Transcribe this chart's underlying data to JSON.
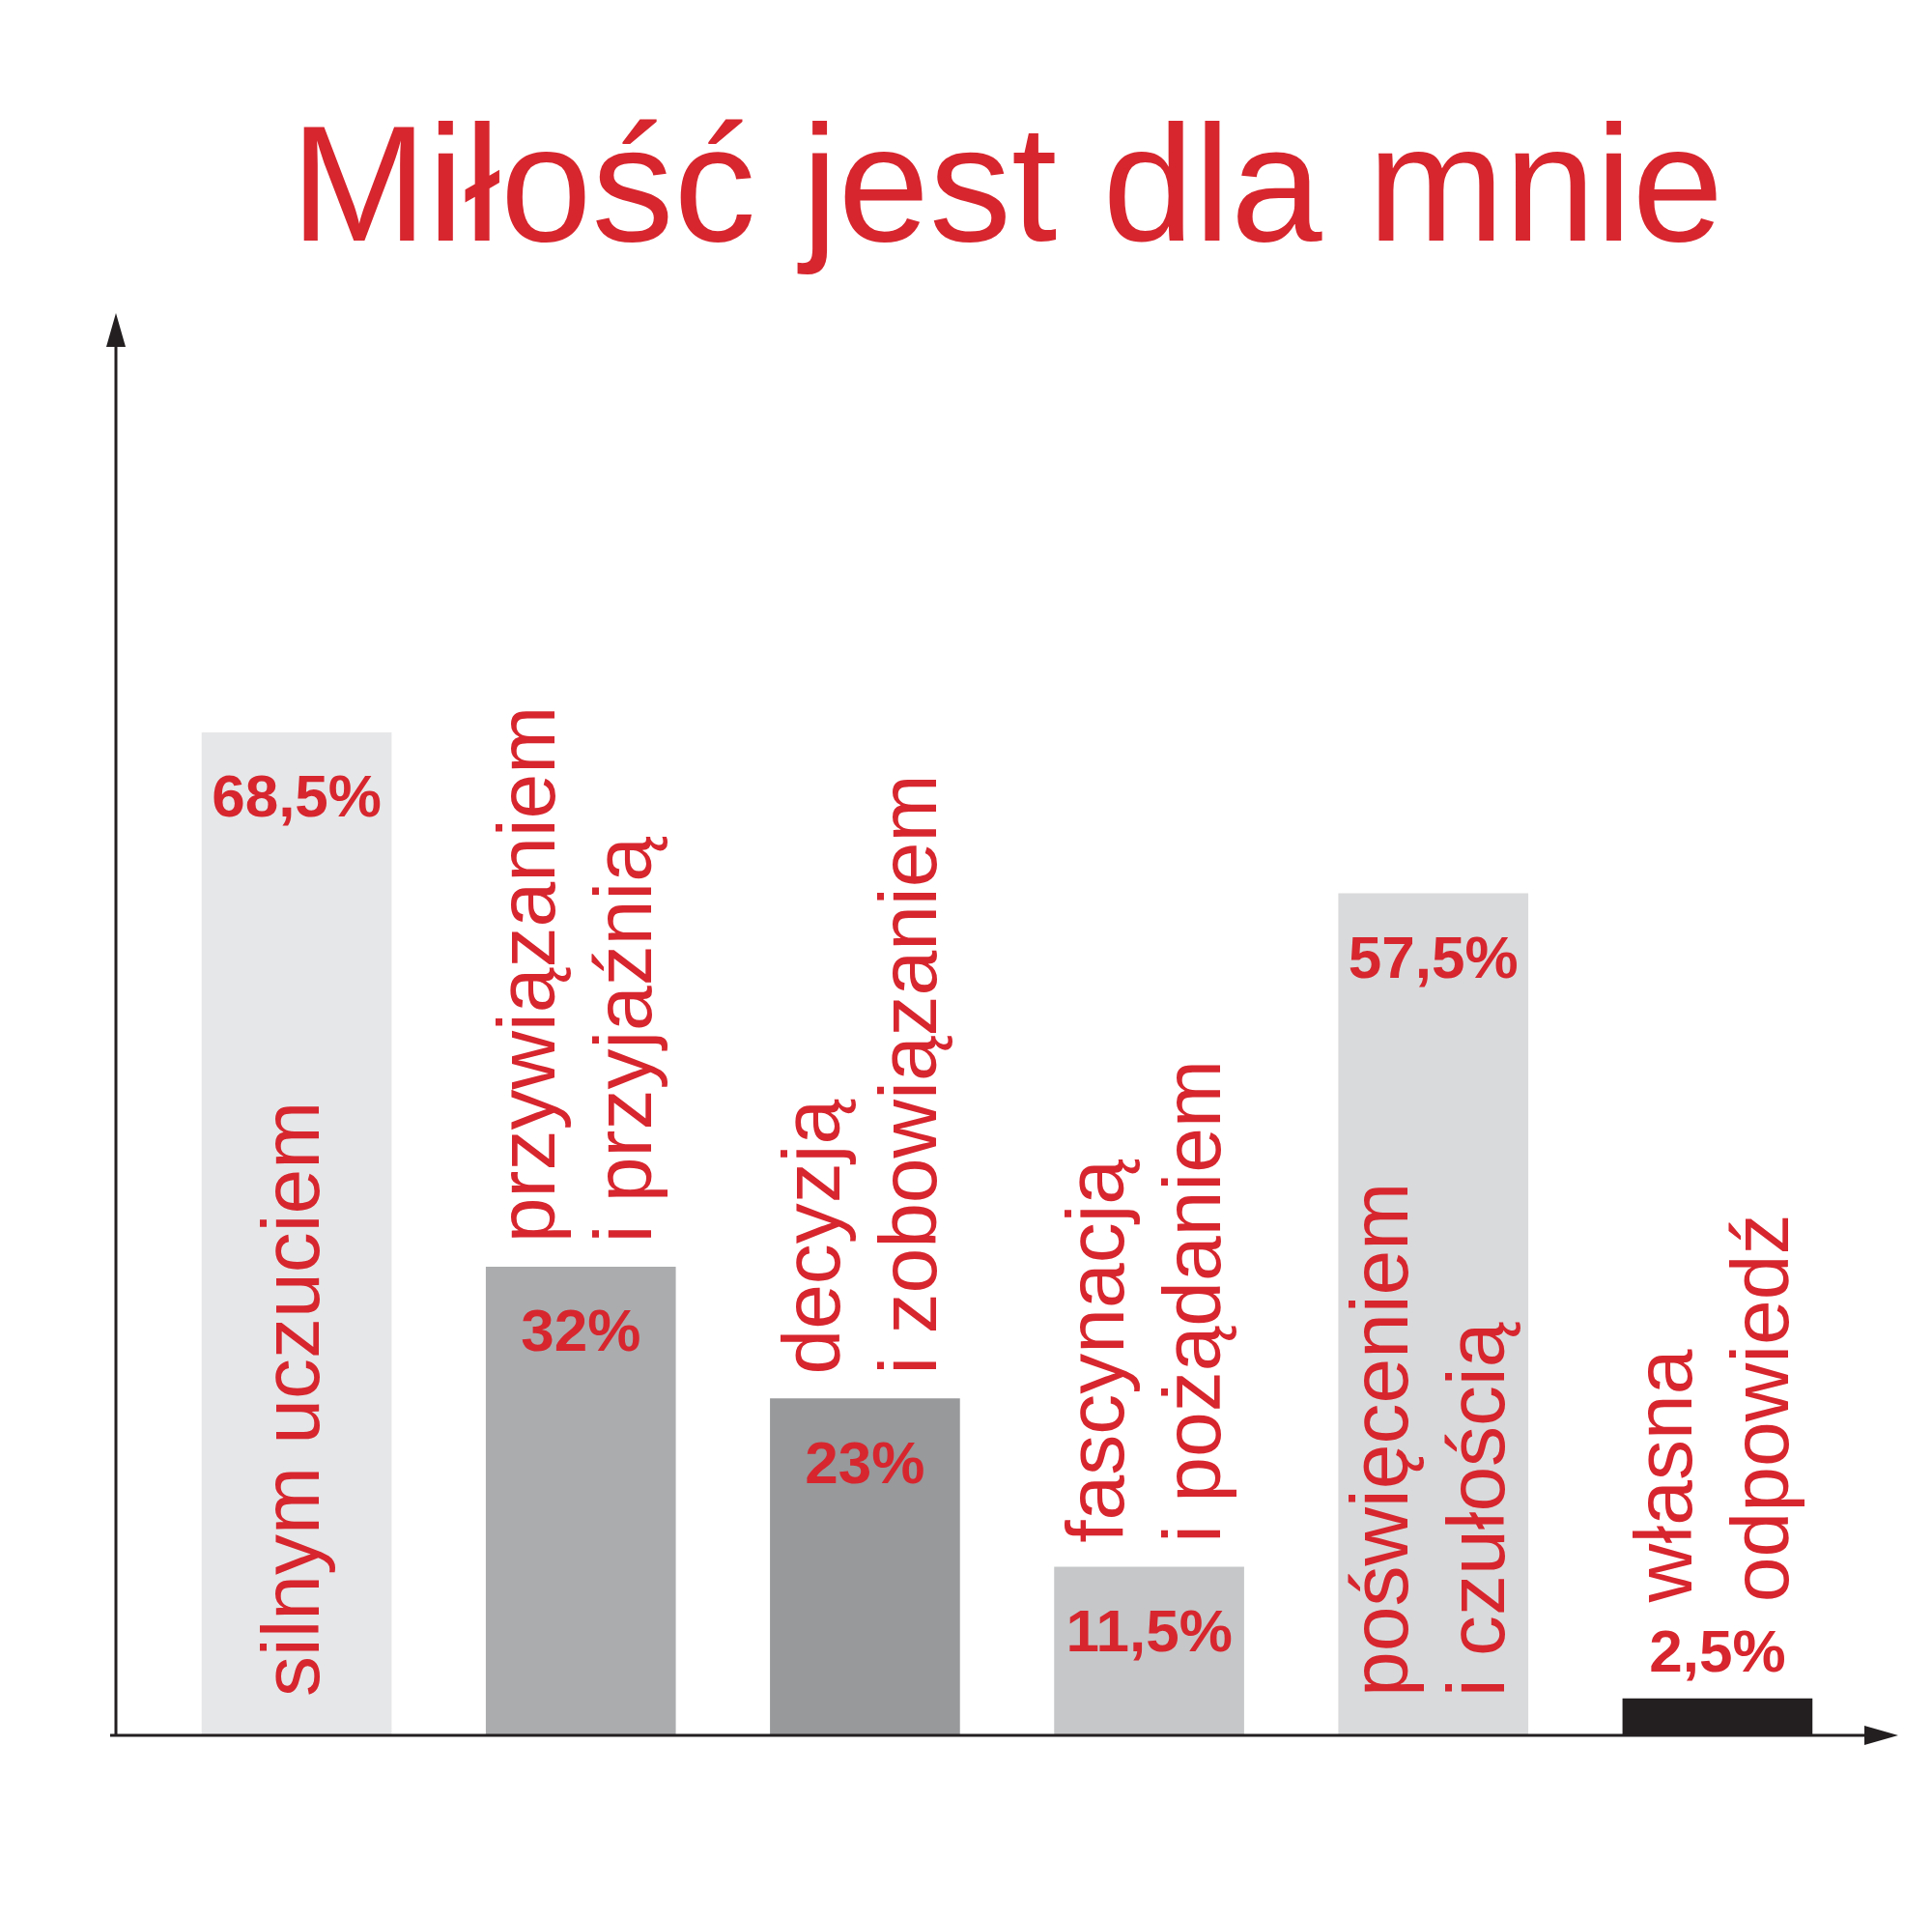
{
  "chart_data": {
    "type": "bar",
    "title": "Miłość jest dla mnie",
    "categories": [
      "silnym uczuciem",
      "przywiązaniem\ni przyjaźnią",
      "decyzją\ni zobowiązaniem",
      "fascynacją\ni pożądaniem",
      "poświęceniem\ni czułością",
      "własna\nodpowiedź"
    ],
    "values": [
      68.5,
      32,
      23,
      11.5,
      57.5,
      2.5
    ],
    "colors": [
      "#e6e7e8",
      "#abacae",
      "#97999b",
      "#c6c7c8",
      "#d9dadb",
      "#231f20"
    ],
    "value_labels": [
      "68,5%",
      "32%",
      "23%",
      "11,5%",
      "57,5%",
      "2,5%"
    ],
    "grid": false
  }
}
